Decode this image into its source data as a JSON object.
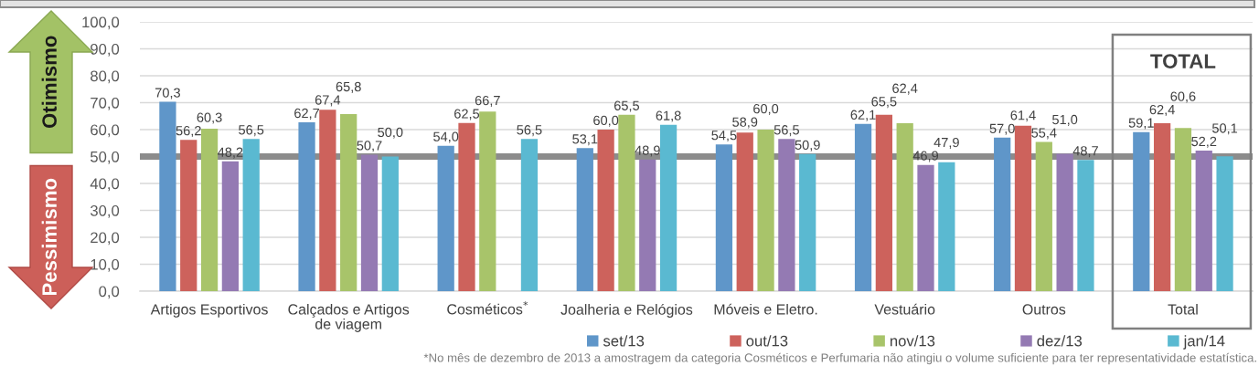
{
  "chart_data": {
    "type": "bar",
    "categories": [
      "Artigos Esportivos",
      "Calçados e Artigos de viagem",
      "Cosméticos$^{*}$",
      "Joalheria e Relógios",
      "Móveis e Eletro.",
      "Vestuário",
      "Outros",
      "Total"
    ],
    "series": [
      {
        "name": "set/13",
        "color": "#5f96c9",
        "values": [
          70.3,
          62.7,
          54.0,
          53.1,
          54.5,
          62.1,
          57.0,
          59.1
        ],
        "value_labels": [
          "70,3",
          "62,7",
          "54,0",
          "53,1",
          "54,5",
          "62,1",
          "57,0",
          "59,1"
        ]
      },
      {
        "name": "out/13",
        "color": "#cd625c",
        "values": [
          56.2,
          67.4,
          62.5,
          60.0,
          58.9,
          65.5,
          61.4,
          62.4
        ],
        "value_labels": [
          "56,2",
          "67,4",
          "62,5",
          "60,0",
          "58,9",
          "65,5",
          "61,4",
          "62,4"
        ]
      },
      {
        "name": "nov/13",
        "color": "#a8c46a",
        "values": [
          60.3,
          65.8,
          66.7,
          65.5,
          60.0,
          62.4,
          55.4,
          60.6
        ],
        "value_labels": [
          "60,3",
          "65,8",
          "66,7",
          "65,5",
          "60,0",
          "62,4",
          "55,4",
          "60,6"
        ]
      },
      {
        "name": "dez/13",
        "color": "#947ab3",
        "values": [
          48.2,
          50.7,
          null,
          48.9,
          56.5,
          46.9,
          51.0,
          52.2
        ],
        "value_labels": [
          "48,2",
          "50,7",
          null,
          "48,9",
          "56,5",
          "46,9",
          "51,0",
          "52,2"
        ]
      },
      {
        "name": "jan/14",
        "color": "#5ab9d1",
        "values": [
          56.5,
          50.0,
          56.5,
          61.8,
          50.9,
          47.9,
          48.7,
          50.1
        ],
        "value_labels": [
          "56,5",
          "50,0",
          "56,5",
          "61,8",
          "50,9",
          "47,9",
          "48,7",
          "50,1"
        ]
      }
    ],
    "ylim": [
      0,
      100
    ],
    "yticks": [
      {
        "value": 0,
        "label": "0,0"
      },
      {
        "value": 10,
        "label": "10,0"
      },
      {
        "value": 20,
        "label": "20,0"
      },
      {
        "value": 30,
        "label": "30,0"
      },
      {
        "value": 40,
        "label": "40,0"
      },
      {
        "value": 50,
        "label": "50,0"
      },
      {
        "value": 60,
        "label": "60,0"
      },
      {
        "value": 70,
        "label": "70,0"
      },
      {
        "value": 80,
        "label": "80,0"
      },
      {
        "value": 90,
        "label": "90,0"
      },
      {
        "value": 100,
        "label": "100,0"
      }
    ],
    "grid": "y",
    "legend": "bottom",
    "ref_lines": [
      {
        "axis": "y",
        "value": 50,
        "color": "#8c8c8c",
        "line_style": "solid"
      }
    ],
    "annotations": [
      "Otimismo",
      "Pessimismo",
      "TOTAL",
      "*No mês de dezembro de 2013 a amostragem da categoria Cosméticos e Perfumaria não atingiu o volume suficiente para ter representatividade estatística."
    ]
  }
}
